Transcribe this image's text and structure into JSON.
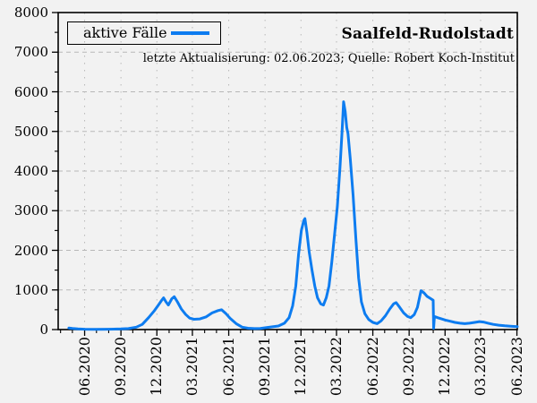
{
  "title": "Saalfeld-Rudolstadt",
  "subtitle": "letzte Aktualisierung: 02.06.2023; Quelle: Robert Koch-Institut",
  "legend": {
    "label": "aktive Fälle"
  },
  "colors": {
    "line": "#0d7cf0",
    "background": "#f2f2f2",
    "grid": "#b8b8b8",
    "axis": "#000000"
  },
  "chart_data": {
    "type": "line",
    "title": "Saalfeld-Rudolstadt",
    "subtitle": "letzte Aktualisierung: 02.06.2023; Quelle: Robert Koch-Institut",
    "legend_position": "top-left",
    "grid": true,
    "y_axis": {
      "min": 0,
      "max": 8000,
      "tick_step": 1000,
      "minor_step": 500,
      "tick_labels": [
        "0",
        "1000",
        "2000",
        "3000",
        "4000",
        "5000",
        "6000",
        "7000",
        "8000"
      ]
    },
    "x_axis": {
      "start": "2020-03-26",
      "end": "2023-06-02",
      "minor_tick_interval": "monthly",
      "major_ticks": [
        {
          "date": "2020-06-01",
          "label": "06.2020"
        },
        {
          "date": "2020-09-01",
          "label": "09.2020"
        },
        {
          "date": "2020-12-01",
          "label": "12.2020"
        },
        {
          "date": "2021-03-01",
          "label": "03.2021"
        },
        {
          "date": "2021-06-01",
          "label": "06.2021"
        },
        {
          "date": "2021-09-01",
          "label": "09.2021"
        },
        {
          "date": "2021-12-01",
          "label": "12.2021"
        },
        {
          "date": "2022-03-01",
          "label": "03.2022"
        },
        {
          "date": "2022-06-01",
          "label": "06.2022"
        },
        {
          "date": "2022-09-01",
          "label": "09.2022"
        },
        {
          "date": "2022-12-01",
          "label": "12.2022"
        },
        {
          "date": "2023-03-01",
          "label": "03.2023"
        },
        {
          "date": "2023-06-01",
          "label": "06.2023"
        }
      ]
    },
    "series": [
      {
        "name": "aktive Fälle",
        "color": "#0d7cf0",
        "points": [
          [
            "2020-04-22",
            40
          ],
          [
            "2020-05-01",
            30
          ],
          [
            "2020-05-15",
            15
          ],
          [
            "2020-06-01",
            8
          ],
          [
            "2020-07-01",
            5
          ],
          [
            "2020-08-01",
            10
          ],
          [
            "2020-09-01",
            15
          ],
          [
            "2020-09-20",
            25
          ],
          [
            "2020-10-10",
            60
          ],
          [
            "2020-10-25",
            130
          ],
          [
            "2020-11-10",
            300
          ],
          [
            "2020-11-25",
            480
          ],
          [
            "2020-12-05",
            620
          ],
          [
            "2020-12-12",
            720
          ],
          [
            "2020-12-18",
            800
          ],
          [
            "2020-12-24",
            700
          ],
          [
            "2020-12-30",
            620
          ],
          [
            "2021-01-08",
            780
          ],
          [
            "2021-01-14",
            830
          ],
          [
            "2021-01-22",
            700
          ],
          [
            "2021-02-01",
            520
          ],
          [
            "2021-02-12",
            380
          ],
          [
            "2021-02-22",
            290
          ],
          [
            "2021-03-05",
            260
          ],
          [
            "2021-03-20",
            270
          ],
          [
            "2021-04-05",
            320
          ],
          [
            "2021-04-20",
            420
          ],
          [
            "2021-05-05",
            480
          ],
          [
            "2021-05-14",
            500
          ],
          [
            "2021-05-25",
            400
          ],
          [
            "2021-06-05",
            280
          ],
          [
            "2021-06-20",
            150
          ],
          [
            "2021-07-05",
            60
          ],
          [
            "2021-07-20",
            35
          ],
          [
            "2021-08-05",
            25
          ],
          [
            "2021-08-20",
            30
          ],
          [
            "2021-09-05",
            50
          ],
          [
            "2021-09-20",
            70
          ],
          [
            "2021-10-05",
            90
          ],
          [
            "2021-10-20",
            160
          ],
          [
            "2021-11-01",
            300
          ],
          [
            "2021-11-10",
            600
          ],
          [
            "2021-11-18",
            1100
          ],
          [
            "2021-11-25",
            1900
          ],
          [
            "2021-12-02",
            2500
          ],
          [
            "2021-12-08",
            2750
          ],
          [
            "2021-12-11",
            2800
          ],
          [
            "2021-12-16",
            2450
          ],
          [
            "2021-12-22",
            1950
          ],
          [
            "2021-12-29",
            1500
          ],
          [
            "2022-01-05",
            1100
          ],
          [
            "2022-01-12",
            800
          ],
          [
            "2022-01-20",
            650
          ],
          [
            "2022-01-27",
            620
          ],
          [
            "2022-02-03",
            800
          ],
          [
            "2022-02-10",
            1100
          ],
          [
            "2022-02-17",
            1700
          ],
          [
            "2022-02-24",
            2400
          ],
          [
            "2022-03-03",
            3100
          ],
          [
            "2022-03-10",
            4100
          ],
          [
            "2022-03-15",
            5000
          ],
          [
            "2022-03-19",
            5750
          ],
          [
            "2022-03-23",
            5500
          ],
          [
            "2022-03-27",
            5100
          ],
          [
            "2022-03-30",
            4950
          ],
          [
            "2022-04-05",
            4300
          ],
          [
            "2022-04-12",
            3400
          ],
          [
            "2022-04-19",
            2300
          ],
          [
            "2022-04-26",
            1300
          ],
          [
            "2022-05-03",
            700
          ],
          [
            "2022-05-12",
            400
          ],
          [
            "2022-05-22",
            250
          ],
          [
            "2022-06-01",
            180
          ],
          [
            "2022-06-12",
            150
          ],
          [
            "2022-06-22",
            220
          ],
          [
            "2022-07-03",
            350
          ],
          [
            "2022-07-14",
            520
          ],
          [
            "2022-07-24",
            650
          ],
          [
            "2022-07-30",
            680
          ],
          [
            "2022-08-08",
            560
          ],
          [
            "2022-08-18",
            420
          ],
          [
            "2022-08-28",
            330
          ],
          [
            "2022-09-05",
            300
          ],
          [
            "2022-09-14",
            380
          ],
          [
            "2022-09-22",
            560
          ],
          [
            "2022-10-01",
            980
          ],
          [
            "2022-10-08",
            930
          ],
          [
            "2022-10-16",
            840
          ],
          [
            "2022-10-24",
            790
          ],
          [
            "2022-11-01",
            740
          ],
          [
            "2022-11-02",
            30
          ],
          [
            "2022-11-04",
            330
          ],
          [
            "2022-11-12",
            300
          ],
          [
            "2022-11-22",
            270
          ],
          [
            "2022-12-02",
            240
          ],
          [
            "2022-12-14",
            210
          ],
          [
            "2022-12-26",
            180
          ],
          [
            "2023-01-08",
            160
          ],
          [
            "2023-01-20",
            150
          ],
          [
            "2023-02-01",
            160
          ],
          [
            "2023-02-14",
            180
          ],
          [
            "2023-02-26",
            200
          ],
          [
            "2023-03-08",
            190
          ],
          [
            "2023-03-20",
            160
          ],
          [
            "2023-04-02",
            130
          ],
          [
            "2023-04-16",
            110
          ],
          [
            "2023-05-01",
            95
          ],
          [
            "2023-05-15",
            85
          ],
          [
            "2023-06-02",
            75
          ]
        ]
      }
    ]
  }
}
